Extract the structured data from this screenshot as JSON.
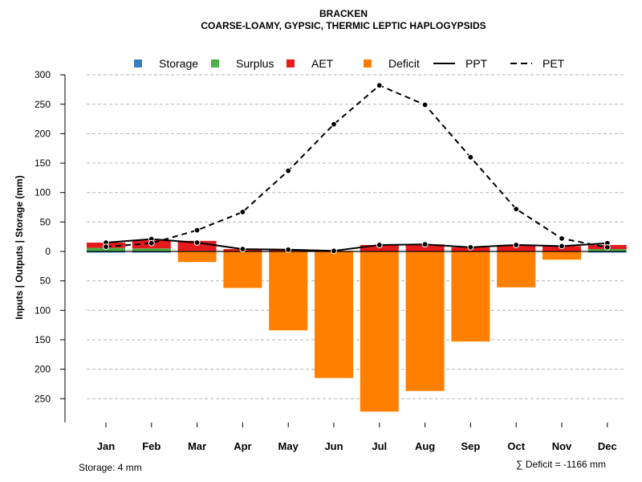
{
  "chart_data": {
    "type": "bar",
    "title": "BRACKEN",
    "subtitle": "COARSE-LOAMY, GYPSIC, THERMIC LEPTIC HAPLOGYPSIDS",
    "ylabel": "Inputs | Outputs | Storage    (mm)",
    "ylim": [
      -290,
      300
    ],
    "yticks": [
      300,
      250,
      200,
      150,
      100,
      50,
      0,
      -50,
      -100,
      -150,
      -200,
      -250
    ],
    "ytick_labels": [
      "300",
      "250",
      "200",
      "150",
      "100",
      "50",
      "0",
      "50",
      "100",
      "150",
      "200",
      "250"
    ],
    "grid": true,
    "legend_position": "top",
    "categories": [
      "Jan",
      "Feb",
      "Mar",
      "Apr",
      "May",
      "Jun",
      "Jul",
      "Aug",
      "Sep",
      "Oct",
      "Nov",
      "Dec"
    ],
    "bar_series": [
      {
        "name": "Storage",
        "color": "#377eb8",
        "values": [
          -2,
          -2,
          0,
          0,
          0,
          0,
          0,
          0,
          0,
          0,
          0,
          -2
        ]
      },
      {
        "name": "Surplus",
        "color": "#4daf4a",
        "values": [
          6,
          5,
          1,
          0,
          0,
          0,
          0,
          0,
          0,
          0,
          0,
          4
        ]
      },
      {
        "name": "AET",
        "color": "#e41a1c",
        "values": [
          9,
          14,
          17,
          4,
          3,
          1,
          11,
          12,
          7,
          11,
          9,
          7
        ]
      },
      {
        "name": "Deficit",
        "color": "#ff7f00",
        "values": [
          0,
          0,
          -18,
          -62,
          -134,
          -215,
          -272,
          -237,
          -153,
          -61,
          -14,
          0
        ]
      }
    ],
    "line_series": [
      {
        "name": "PPT",
        "style": "solid",
        "color": "#000000",
        "values": [
          15,
          21,
          15,
          4,
          3,
          1,
          11,
          12,
          7,
          11,
          9,
          14
        ]
      },
      {
        "name": "PET",
        "style": "dashed",
        "color": "#000000",
        "values": [
          8,
          14,
          36,
          67,
          137,
          216,
          282,
          249,
          160,
          72,
          22,
          7
        ]
      }
    ],
    "legend": [
      {
        "label": "Storage",
        "kind": "box",
        "color": "#377eb8"
      },
      {
        "label": "Surplus",
        "kind": "box",
        "color": "#4daf4a"
      },
      {
        "label": "AET",
        "kind": "box",
        "color": "#e41a1c"
      },
      {
        "label": "Deficit",
        "kind": "box",
        "color": "#ff7f00"
      },
      {
        "label": "PPT",
        "kind": "line",
        "dash": "solid"
      },
      {
        "label": "PET",
        "kind": "line",
        "dash": "dashed"
      }
    ],
    "footer_left": "Storage: 4 mm",
    "footer_right": "∑ Deficit = -1166 mm"
  }
}
